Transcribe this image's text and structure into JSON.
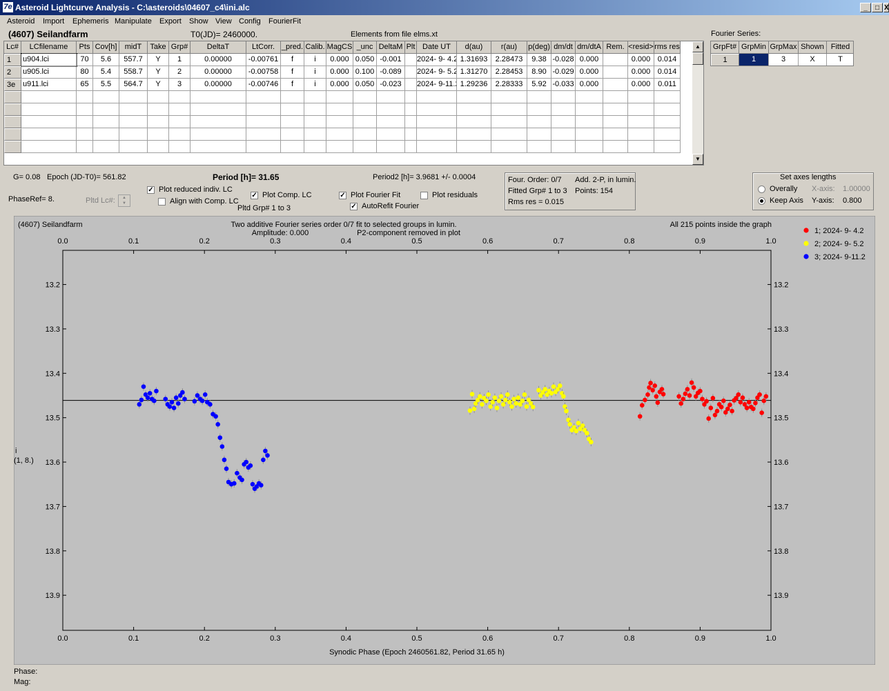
{
  "window": {
    "title": "Asteroid Lightcurve Analysis - C:\\asteroids\\04607_c4\\ini.alc",
    "icon": "7e",
    "controls": [
      "_",
      "□",
      "X"
    ]
  },
  "menu": [
    "Asteroid",
    "Import",
    "Ephemeris",
    "Manipulate",
    "Export",
    "Show",
    "View",
    "Config",
    "FourierFit"
  ],
  "header": {
    "asteroid": "(4607) Seilandfarm",
    "t0": "T0(JD)= 2460000.",
    "elements": "Elements from file elms.xt",
    "fourier_series": "Fourier Series:"
  },
  "lc_table": {
    "columns": [
      "Lc#",
      "LCfilename",
      "Pts",
      "Cov[h]",
      "midT",
      "Take",
      "Grp#",
      "DeltaT",
      "LtCorr.",
      "_pred.",
      "Calib.",
      "MagCS",
      "_unc",
      "DeltaM",
      "Plt",
      "Date UT",
      "d(au)",
      "r(au)",
      "p(deg)",
      "dm/dt",
      "dm/dtA",
      "Rem.",
      "<resid>",
      "rms res"
    ],
    "rows": [
      [
        "1",
        "u904.lci",
        "70",
        "5.6",
        "557.7",
        "Y",
        "1",
        "0.00000",
        "-0.00761",
        "f",
        "i",
        "0.000",
        "0.050",
        "-0.001",
        "",
        "2024- 9- 4.2",
        "1.31693",
        "2.28473",
        "9.38",
        "-0.028",
        "0.000",
        "",
        "0.000",
        "0.014"
      ],
      [
        "2",
        "u905.lci",
        "80",
        "5.4",
        "558.7",
        "Y",
        "2",
        "0.00000",
        "-0.00758",
        "f",
        "i",
        "0.000",
        "0.100",
        "-0.089",
        "",
        "2024- 9- 5.2",
        "1.31270",
        "2.28453",
        "8.90",
        "-0.029",
        "0.000",
        "",
        "0.000",
        "0.014"
      ],
      [
        "3e",
        "u911.lci",
        "65",
        "5.5",
        "564.7",
        "Y",
        "3",
        "0.00000",
        "-0.00746",
        "f",
        "i",
        "0.000",
        "0.050",
        "-0.023",
        "",
        "2024- 9-11.2",
        "1.29236",
        "2.28333",
        "5.92",
        "-0.033",
        "0.000",
        "",
        "0.000",
        "0.011"
      ]
    ]
  },
  "fourier_table": {
    "columns": [
      "GrpFt#",
      "GrpMin",
      "GrpMax",
      "Shown",
      "Fitted"
    ],
    "rows": [
      [
        "1",
        "1",
        "3",
        "X",
        "T"
      ]
    ]
  },
  "info": {
    "g": "G= 0.08",
    "epoch": "Epoch (JD-T0)= 561.82",
    "period": "Period [h]= 31.65",
    "period2": "Period2 [h]= 3.9681 +/- 0.0004",
    "phaseref": "PhaseRef= 8.",
    "pltd_lc": "Pltd Lc#:",
    "pltd_grp": "Pltd Grp#  1   to    3"
  },
  "checkboxes": {
    "reduced": {
      "label": "Plot reduced indiv. LC",
      "checked": true
    },
    "align": {
      "label": "Align with Comp. LC",
      "checked": false
    },
    "comp": {
      "label": "Plot Comp. LC",
      "checked": true
    },
    "fourier": {
      "label": "Plot Fourier Fit",
      "checked": true
    },
    "residuals": {
      "label": "Plot residuals",
      "checked": false
    },
    "autorefit": {
      "label": "AutoRefit Fourier",
      "checked": true
    }
  },
  "fit_info": {
    "order": "Four. Order:  0/7",
    "add": "Add. 2-P, in lumin.",
    "fitted": "Fitted Grp# 1 to 3",
    "points": "Points: 154",
    "rms": "Rms res      = 0.015"
  },
  "axes_box": {
    "title": "Set axes lengths",
    "overally": "Overally",
    "keep": "Keep Axis",
    "xaxis_label": "X-axis:",
    "xaxis_value": "1.00000",
    "yaxis_label": "Y-axis:",
    "yaxis_value": "0.800"
  },
  "chart_data": {
    "type": "scatter",
    "title_left": "(4607) Seilandfarm",
    "title_center_1": "Two additive Fourier series order 0/7 fit to selected groups in lumin.",
    "title_center_2": "Amplitude: 0.000",
    "title_center_3": "P2-component removed in plot",
    "title_right": "All 215 points inside the graph",
    "xlabel": "Synodic Phase (Epoch 2460561.82, Period 31.65 h)",
    "ylabel": "i",
    "ylabel2": "(1, 8.)",
    "xlim": [
      0,
      1
    ],
    "ylim": [
      13.9,
      13.2
    ],
    "ylim_plot": [
      13.123,
      13.979
    ],
    "x_ticks": [
      "0.0",
      "0.1",
      "0.2",
      "0.3",
      "0.4",
      "0.5",
      "0.6",
      "0.7",
      "0.8",
      "0.9",
      "1.0"
    ],
    "y_ticks": [
      "13.2",
      "13.3",
      "13.4",
      "13.5",
      "13.6",
      "13.7",
      "13.8",
      "13.9"
    ],
    "fit_level": 13.461,
    "series": [
      {
        "name": "1; 2024- 9- 4.2",
        "color": "#ff0000",
        "points": [
          [
            0.815,
            13.497
          ],
          [
            0.818,
            13.472
          ],
          [
            0.822,
            13.46
          ],
          [
            0.826,
            13.448
          ],
          [
            0.828,
            13.432
          ],
          [
            0.83,
            13.422
          ],
          [
            0.833,
            13.438
          ],
          [
            0.836,
            13.428
          ],
          [
            0.838,
            13.452
          ],
          [
            0.84,
            13.466
          ],
          [
            0.843,
            13.442
          ],
          [
            0.846,
            13.436
          ],
          [
            0.848,
            13.447
          ],
          [
            0.87,
            13.452
          ],
          [
            0.873,
            13.468
          ],
          [
            0.876,
            13.458
          ],
          [
            0.879,
            13.446
          ],
          [
            0.882,
            13.436
          ],
          [
            0.885,
            13.45
          ],
          [
            0.888,
            13.421
          ],
          [
            0.891,
            13.432
          ],
          [
            0.894,
            13.452
          ],
          [
            0.897,
            13.444
          ],
          [
            0.9,
            13.44
          ],
          [
            0.903,
            13.458
          ],
          [
            0.906,
            13.47
          ],
          [
            0.909,
            13.463
          ],
          [
            0.912,
            13.502
          ],
          [
            0.915,
            13.478
          ],
          [
            0.918,
            13.456
          ],
          [
            0.921,
            13.494
          ],
          [
            0.924,
            13.485
          ],
          [
            0.927,
            13.47
          ],
          [
            0.93,
            13.476
          ],
          [
            0.933,
            13.462
          ],
          [
            0.936,
            13.488
          ],
          [
            0.939,
            13.48
          ],
          [
            0.942,
            13.471
          ],
          [
            0.945,
            13.485
          ],
          [
            0.948,
            13.461
          ],
          [
            0.951,
            13.456
          ],
          [
            0.954,
            13.448
          ],
          [
            0.957,
            13.465
          ],
          [
            0.96,
            13.455
          ],
          [
            0.963,
            13.47
          ],
          [
            0.966,
            13.478
          ],
          [
            0.969,
            13.465
          ],
          [
            0.972,
            13.476
          ],
          [
            0.975,
            13.48
          ],
          [
            0.978,
            13.467
          ],
          [
            0.981,
            13.455
          ],
          [
            0.984,
            13.448
          ],
          [
            0.987,
            13.489
          ],
          [
            0.99,
            13.462
          ],
          [
            0.993,
            13.452
          ]
        ]
      },
      {
        "name": "2; 2024- 9- 5.2",
        "color": "#ffff00",
        "points": [
          [
            0.575,
            13.484
          ],
          [
            0.578,
            13.447
          ],
          [
            0.581,
            13.48
          ],
          [
            0.583,
            13.468
          ],
          [
            0.586,
            13.46
          ],
          [
            0.589,
            13.452
          ],
          [
            0.592,
            13.47
          ],
          [
            0.595,
            13.456
          ],
          [
            0.598,
            13.462
          ],
          [
            0.601,
            13.448
          ],
          [
            0.604,
            13.475
          ],
          [
            0.607,
            13.465
          ],
          [
            0.61,
            13.455
          ],
          [
            0.613,
            13.478
          ],
          [
            0.616,
            13.462
          ],
          [
            0.619,
            13.452
          ],
          [
            0.622,
            13.47
          ],
          [
            0.625,
            13.46
          ],
          [
            0.628,
            13.448
          ],
          [
            0.631,
            13.465
          ],
          [
            0.634,
            13.475
          ],
          [
            0.637,
            13.458
          ],
          [
            0.64,
            13.468
          ],
          [
            0.643,
            13.455
          ],
          [
            0.646,
            13.47
          ],
          [
            0.649,
            13.462
          ],
          [
            0.652,
            13.448
          ],
          [
            0.655,
            13.475
          ],
          [
            0.658,
            13.46
          ],
          [
            0.661,
            13.468
          ],
          [
            0.664,
            13.476
          ],
          [
            0.672,
            13.438
          ],
          [
            0.675,
            13.45
          ],
          [
            0.678,
            13.443
          ],
          [
            0.681,
            13.436
          ],
          [
            0.684,
            13.448
          ],
          [
            0.687,
            13.44
          ],
          [
            0.69,
            13.445
          ],
          [
            0.693,
            13.43
          ],
          [
            0.696,
            13.442
          ],
          [
            0.699,
            13.436
          ],
          [
            0.702,
            13.428
          ],
          [
            0.705,
            13.445
          ],
          [
            0.707,
            13.452
          ],
          [
            0.709,
            13.475
          ],
          [
            0.711,
            13.485
          ],
          [
            0.714,
            13.505
          ],
          [
            0.716,
            13.515
          ],
          [
            0.719,
            13.528
          ],
          [
            0.722,
            13.522
          ],
          [
            0.725,
            13.53
          ],
          [
            0.728,
            13.512
          ],
          [
            0.731,
            13.525
          ],
          [
            0.734,
            13.518
          ],
          [
            0.737,
            13.528
          ],
          [
            0.74,
            13.535
          ],
          [
            0.743,
            13.548
          ],
          [
            0.746,
            13.555
          ]
        ]
      },
      {
        "name": "3; 2024- 9-11.2",
        "color": "#0000ff",
        "points": [
          [
            0.108,
            13.47
          ],
          [
            0.111,
            13.46
          ],
          [
            0.114,
            13.43
          ],
          [
            0.117,
            13.448
          ],
          [
            0.12,
            13.455
          ],
          [
            0.123,
            13.445
          ],
          [
            0.126,
            13.458
          ],
          [
            0.129,
            13.462
          ],
          [
            0.132,
            13.44
          ],
          [
            0.145,
            13.458
          ],
          [
            0.148,
            13.47
          ],
          [
            0.151,
            13.475
          ],
          [
            0.154,
            13.465
          ],
          [
            0.157,
            13.478
          ],
          [
            0.16,
            13.455
          ],
          [
            0.163,
            13.468
          ],
          [
            0.166,
            13.45
          ],
          [
            0.169,
            13.443
          ],
          [
            0.172,
            13.458
          ],
          [
            0.186,
            13.463
          ],
          [
            0.19,
            13.45
          ],
          [
            0.194,
            13.458
          ],
          [
            0.197,
            13.462
          ],
          [
            0.201,
            13.448
          ],
          [
            0.204,
            13.465
          ],
          [
            0.208,
            13.47
          ],
          [
            0.212,
            13.492
          ],
          [
            0.216,
            13.497
          ],
          [
            0.219,
            13.515
          ],
          [
            0.222,
            13.545
          ],
          [
            0.225,
            13.565
          ],
          [
            0.228,
            13.595
          ],
          [
            0.231,
            13.615
          ],
          [
            0.234,
            13.645
          ],
          [
            0.238,
            13.65
          ],
          [
            0.242,
            13.648
          ],
          [
            0.246,
            13.625
          ],
          [
            0.25,
            13.635
          ],
          [
            0.253,
            13.64
          ],
          [
            0.256,
            13.605
          ],
          [
            0.259,
            13.6
          ],
          [
            0.262,
            13.612
          ],
          [
            0.265,
            13.608
          ],
          [
            0.268,
            13.65
          ],
          [
            0.271,
            13.66
          ],
          [
            0.274,
            13.655
          ],
          [
            0.277,
            13.648
          ],
          [
            0.28,
            13.652
          ],
          [
            0.283,
            13.595
          ],
          [
            0.286,
            13.575
          ],
          [
            0.289,
            13.585
          ]
        ]
      }
    ]
  },
  "status": {
    "phase": "Phase:",
    "mag": "Mag:"
  },
  "colors": {
    "titlebar": "#0a246a",
    "plot_bg": "#c0c0c0",
    "selected_cell": "#0a246a"
  }
}
